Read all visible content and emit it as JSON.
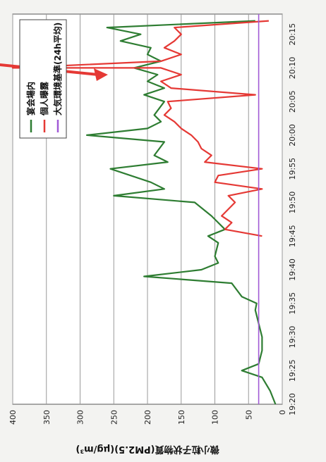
{
  "chart_data": {
    "type": "line",
    "orientation": "rotated-90",
    "ylabel": "微小粒子状物質(PM2.5)(μg/m³)",
    "ylim": [
      0,
      400
    ],
    "yticks": [
      0,
      50,
      100,
      150,
      200,
      250,
      300,
      350,
      400
    ],
    "xlim": [
      "19:20",
      "20:18"
    ],
    "xticks": [
      "19:20",
      "19:25",
      "19:30",
      "19:35",
      "19:40",
      "19:45",
      "19:50",
      "19:55",
      "20:00",
      "20:05",
      "20:10",
      "20:15"
    ],
    "grid": true,
    "legend_position": "top-right",
    "annotation": "red arrow pointing to peak near 20:10",
    "series": [
      {
        "name": "宴会場内",
        "color": "#2e7d32",
        "x": [
          "19:20",
          "19:22",
          "19:24",
          "19:25",
          "19:26",
          "19:28",
          "19:30",
          "19:32",
          "19:34",
          "19:35",
          "19:36",
          "19:38",
          "19:39",
          "19:40",
          "19:41",
          "19:42",
          "19:44",
          "19:45",
          "19:46",
          "19:48",
          "19:50",
          "19:51",
          "19:52",
          "19:53",
          "19:55",
          "19:56",
          "19:57",
          "19:59",
          "20:00",
          "20:01",
          "20:02",
          "20:03",
          "20:05",
          "20:06",
          "20:07",
          "20:08",
          "20:09",
          "20:10",
          "20:11",
          "20:12",
          "20:13",
          "20:14",
          "20:15",
          "20:16",
          "20:17"
        ],
        "y": [
          10,
          18,
          30,
          60,
          35,
          30,
          30,
          35,
          40,
          38,
          60,
          75,
          205,
          120,
          95,
          100,
          95,
          110,
          85,
          105,
          130,
          250,
          175,
          195,
          255,
          170,
          190,
          175,
          290,
          200,
          180,
          190,
          175,
          205,
          175,
          200,
          185,
          220,
          180,
          200,
          195,
          240,
          210,
          260,
          40
        ]
      },
      {
        "name": "個人曝露",
        "color": "#e53935",
        "x": [
          "19:45",
          "19:46",
          "19:47",
          "19:48",
          "19:49",
          "19:50",
          "19:51",
          "19:52",
          "19:53",
          "19:54",
          "19:55",
          "19:56",
          "19:57",
          "19:58",
          "19:59",
          "20:00",
          "20:01",
          "20:02",
          "20:03",
          "20:04",
          "20:05",
          "20:06",
          "20:07",
          "20:08",
          "20:09",
          "20:10",
          "20:10",
          "20:11",
          "20:12",
          "20:13",
          "20:14",
          "20:15",
          "20:16",
          "20:17"
        ],
        "y": [
          30,
          85,
          75,
          90,
          80,
          70,
          80,
          30,
          100,
          95,
          30,
          115,
          105,
          120,
          125,
          135,
          150,
          160,
          175,
          165,
          170,
          40,
          165,
          180,
          150,
          180,
          400,
          180,
          150,
          175,
          160,
          150,
          160,
          20
        ]
      },
      {
        "name": "大気環境基準(24h平均)",
        "color": "#a15ad6",
        "x": [
          "19:20",
          "20:18"
        ],
        "y": [
          35,
          35
        ]
      }
    ]
  }
}
